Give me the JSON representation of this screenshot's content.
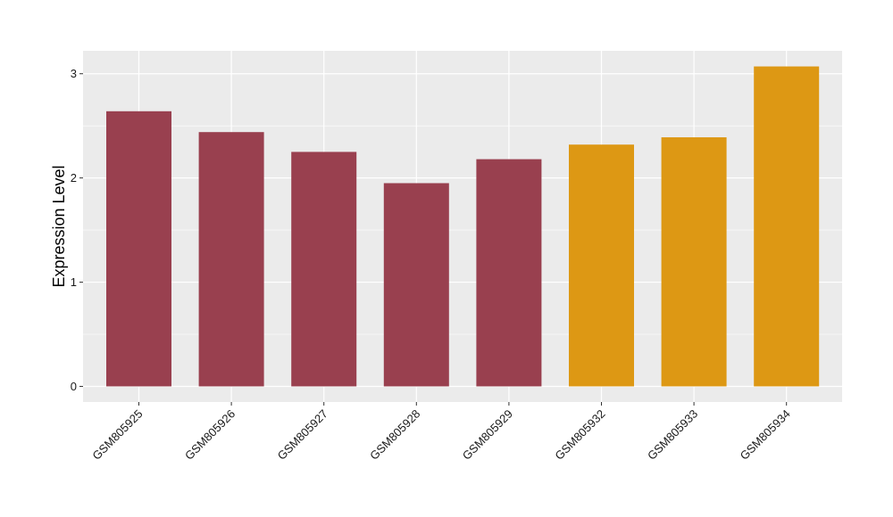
{
  "chart_data": {
    "type": "bar",
    "title": "",
    "xlabel": "",
    "ylabel": "Expression Level",
    "categories": [
      "GSM805925",
      "GSM805926",
      "GSM805927",
      "GSM805928",
      "GSM805929",
      "GSM805932",
      "GSM805933",
      "GSM805934"
    ],
    "values": [
      2.64,
      2.44,
      2.25,
      1.95,
      2.18,
      2.32,
      2.39,
      3.07
    ],
    "bar_colors": [
      "#99404f",
      "#99404f",
      "#99404f",
      "#99404f",
      "#99404f",
      "#dd9814",
      "#dd9814",
      "#dd9814"
    ],
    "yticks": [
      0,
      1,
      2,
      3
    ],
    "ylim": [
      -0.15,
      3.22
    ],
    "grid": true,
    "legend": "none",
    "panel_background": "#ebebeb",
    "gridline_color": "#ffffff"
  }
}
